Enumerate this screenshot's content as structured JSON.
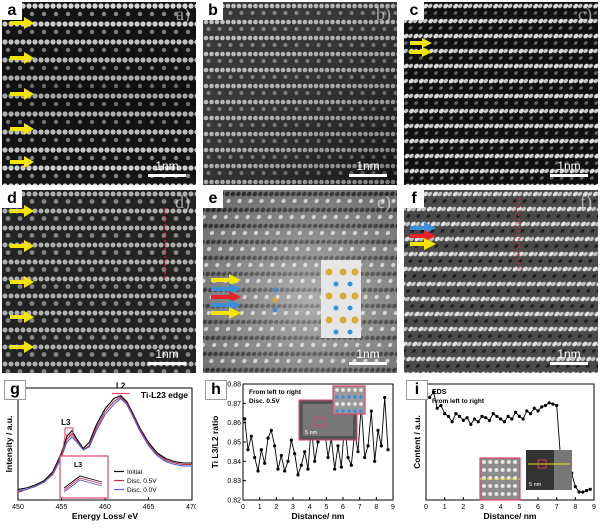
{
  "panels": {
    "a": {
      "tag": "a",
      "ghost": "a)",
      "scale": "1nm"
    },
    "b": {
      "tag": "b",
      "ghost": "b)",
      "scale": "1nm"
    },
    "c": {
      "tag": "c",
      "ghost": "c)",
      "scale": "1nm"
    },
    "d": {
      "tag": "d",
      "ghost": "d)",
      "scale": "1nm"
    },
    "e": {
      "tag": "e",
      "ghost": "e)",
      "scale": "1nm"
    },
    "f": {
      "tag": "f",
      "ghost": "f)",
      "scale": "1nm"
    }
  },
  "colors": {
    "arrow_yellow": "#f2e600",
    "arrow_red": "#e8232a",
    "arrow_blue": "#3a8fd8",
    "inset_border": "#e0436b"
  },
  "chart_data": [
    {
      "panel": "g",
      "type": "line",
      "title": "Ti-L23 edge",
      "xlabel": "Energy Loss/ eV",
      "ylabel": "Intensity / a.u.",
      "xlim": [
        450,
        470
      ],
      "xticks": [
        450,
        455,
        460,
        465,
        470
      ],
      "annotations": [
        "L3",
        "L2",
        "L3"
      ],
      "legend": [
        "Initial",
        "Disc. 0.5V",
        "Disc. 0.0V"
      ],
      "legend_position": "bottom-right",
      "series": [
        {
          "name": "Initial",
          "color": "#000000",
          "x": [
            450,
            451,
            452,
            453,
            454,
            455,
            455.6,
            456.2,
            456.8,
            457.5,
            458.2,
            459,
            460,
            461,
            461.8,
            462.5,
            463.2,
            464,
            465,
            466,
            467,
            468,
            469,
            470
          ],
          "y": [
            0.3,
            0.31,
            0.33,
            0.36,
            0.42,
            0.55,
            0.66,
            0.7,
            0.64,
            0.58,
            0.62,
            0.74,
            0.85,
            0.92,
            0.94,
            0.9,
            0.82,
            0.72,
            0.62,
            0.55,
            0.51,
            0.49,
            0.48,
            0.48
          ]
        },
        {
          "name": "Disc. 0.5V",
          "color": "#c0304a",
          "x": [
            450,
            451,
            452,
            453,
            454,
            455,
            455.6,
            456.2,
            456.8,
            457.5,
            458.2,
            459,
            460,
            461,
            461.8,
            462.5,
            463.2,
            464,
            465,
            466,
            467,
            468,
            469,
            470
          ],
          "y": [
            0.28,
            0.3,
            0.32,
            0.35,
            0.41,
            0.53,
            0.64,
            0.68,
            0.63,
            0.57,
            0.6,
            0.72,
            0.83,
            0.9,
            0.93,
            0.89,
            0.81,
            0.71,
            0.61,
            0.54,
            0.5,
            0.48,
            0.47,
            0.47
          ]
        },
        {
          "name": "Disc. 0.0V",
          "color": "#5a5acf",
          "x": [
            450,
            451,
            452,
            453,
            454,
            455,
            455.6,
            456.2,
            456.8,
            457.5,
            458.2,
            459,
            460,
            461,
            461.8,
            462.5,
            463.2,
            464,
            465,
            466,
            467,
            468,
            469,
            470
          ],
          "y": [
            0.29,
            0.3,
            0.32,
            0.35,
            0.4,
            0.52,
            0.62,
            0.66,
            0.62,
            0.57,
            0.59,
            0.7,
            0.81,
            0.88,
            0.92,
            0.88,
            0.8,
            0.7,
            0.6,
            0.53,
            0.49,
            0.47,
            0.46,
            0.46
          ]
        }
      ]
    },
    {
      "panel": "h",
      "type": "line",
      "title": "",
      "annotation": "From left to right\nDisc. 0.5V",
      "xlabel": "Distance/ nm",
      "ylabel": "Ti L3/L2 ratio",
      "xlim": [
        0,
        9
      ],
      "ylim": [
        0.82,
        0.88
      ],
      "xticks": [
        0,
        1,
        2,
        3,
        4,
        5,
        6,
        7,
        8,
        9
      ],
      "yticks": [
        0.82,
        0.83,
        0.84,
        0.85,
        0.86,
        0.87,
        0.88
      ],
      "inset_scale": "5 nm",
      "series": [
        {
          "name": "",
          "color": "#000000",
          "x": [
            0.1,
            0.3,
            0.5,
            0.7,
            0.9,
            1.1,
            1.3,
            1.5,
            1.7,
            1.9,
            2.1,
            2.3,
            2.5,
            2.7,
            2.9,
            3.1,
            3.3,
            3.5,
            3.7,
            3.9,
            4.1,
            4.3,
            4.5,
            4.7,
            4.9,
            5.1,
            5.3,
            5.5,
            5.7,
            5.9,
            6.1,
            6.3,
            6.5,
            6.7,
            6.9,
            7.1,
            7.3,
            7.5,
            7.7,
            7.9,
            8.1,
            8.3,
            8.5,
            8.7
          ],
          "y": [
            0.862,
            0.846,
            0.853,
            0.842,
            0.835,
            0.846,
            0.839,
            0.852,
            0.856,
            0.848,
            0.836,
            0.843,
            0.835,
            0.84,
            0.851,
            0.844,
            0.833,
            0.838,
            0.845,
            0.836,
            0.858,
            0.84,
            0.85,
            0.868,
            0.856,
            0.842,
            0.852,
            0.836,
            0.848,
            0.837,
            0.86,
            0.842,
            0.838,
            0.855,
            0.845,
            0.869,
            0.842,
            0.848,
            0.866,
            0.84,
            0.856,
            0.848,
            0.873,
            0.846
          ]
        }
      ]
    },
    {
      "panel": "i",
      "type": "line",
      "title": "EDS",
      "annotation": "From left to right",
      "xlabel": "Distance/ nm",
      "ylabel": "Content / a.u.",
      "xlim": [
        0,
        9
      ],
      "xticks": [
        0,
        1,
        2,
        3,
        4,
        5,
        6,
        7,
        8,
        9
      ],
      "inset_scale": "5 nm",
      "series": [
        {
          "name": "",
          "color": "#000000",
          "x": [
            0.2,
            0.4,
            0.6,
            0.8,
            1.0,
            1.2,
            1.4,
            1.6,
            1.8,
            2.0,
            2.2,
            2.4,
            2.6,
            2.8,
            3.0,
            3.2,
            3.4,
            3.6,
            3.8,
            4.0,
            4.2,
            4.4,
            4.6,
            4.8,
            5.0,
            5.2,
            5.4,
            5.6,
            5.8,
            6.0,
            6.2,
            6.4,
            6.6,
            6.8,
            7.0,
            7.2,
            7.4,
            7.6,
            7.8,
            8.0,
            8.2,
            8.4,
            8.6,
            8.8
          ],
          "y": [
            0.78,
            0.82,
            0.7,
            0.72,
            0.66,
            0.64,
            0.6,
            0.66,
            0.64,
            0.61,
            0.63,
            0.58,
            0.62,
            0.6,
            0.64,
            0.63,
            0.61,
            0.66,
            0.64,
            0.62,
            0.6,
            0.64,
            0.62,
            0.67,
            0.64,
            0.62,
            0.68,
            0.66,
            0.7,
            0.68,
            0.71,
            0.72,
            0.74,
            0.73,
            0.72,
            0.35,
            0.28,
            0.26,
            0.22,
            0.12,
            0.08,
            0.08,
            0.09,
            0.1
          ]
        }
      ]
    }
  ]
}
